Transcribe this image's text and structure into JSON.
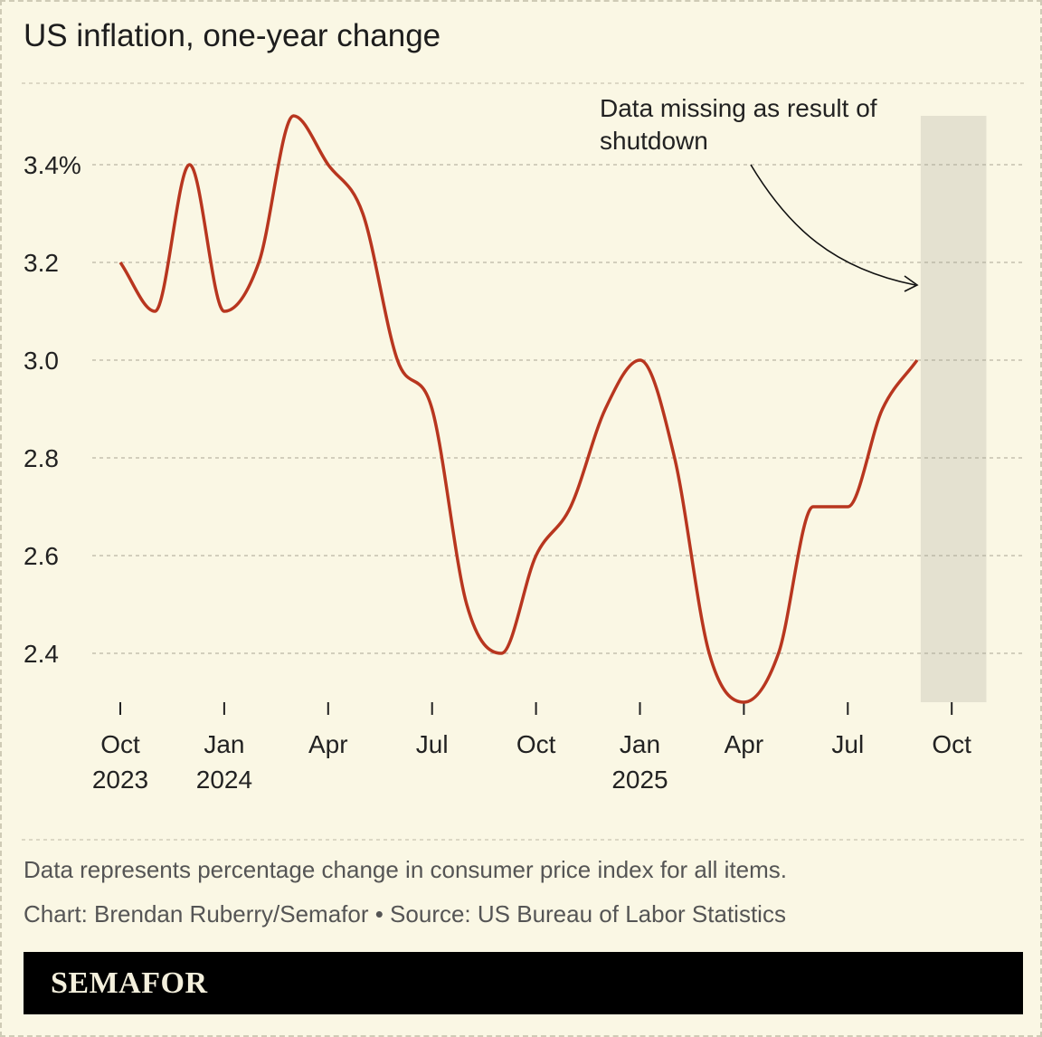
{
  "chart_data": {
    "type": "line",
    "title": "US inflation, one-year change",
    "x": [
      "2023-10",
      "2023-11",
      "2023-12",
      "2024-01",
      "2024-02",
      "2024-03",
      "2024-04",
      "2024-05",
      "2024-06",
      "2024-07",
      "2024-08",
      "2024-09",
      "2024-10",
      "2024-11",
      "2024-12",
      "2025-01",
      "2025-02",
      "2025-03",
      "2025-04",
      "2025-05",
      "2025-06",
      "2025-07",
      "2025-08",
      "2025-09"
    ],
    "values": [
      3.2,
      3.1,
      3.4,
      3.1,
      3.2,
      3.5,
      3.4,
      3.3,
      3.0,
      2.9,
      2.5,
      2.4,
      2.6,
      2.7,
      2.9,
      3.0,
      2.8,
      2.4,
      2.3,
      2.4,
      2.7,
      2.7,
      2.9,
      3.0
    ],
    "ylim": [
      2.3,
      3.5
    ],
    "y_ticks": [
      {
        "value": 3.4,
        "label": "3.4%"
      },
      {
        "value": 3.2,
        "label": "3.2"
      },
      {
        "value": 3.0,
        "label": "3.0"
      },
      {
        "value": 2.8,
        "label": "2.8"
      },
      {
        "value": 2.6,
        "label": "2.6"
      },
      {
        "value": 2.4,
        "label": "2.4"
      }
    ],
    "x_ticks": [
      {
        "month": "2023-10",
        "line1": "Oct",
        "line2": "2023"
      },
      {
        "month": "2024-01",
        "line1": "Jan",
        "line2": "2024"
      },
      {
        "month": "2024-04",
        "line1": "Apr",
        "line2": ""
      },
      {
        "month": "2024-07",
        "line1": "Jul",
        "line2": ""
      },
      {
        "month": "2024-10",
        "line1": "Oct",
        "line2": ""
      },
      {
        "month": "2025-01",
        "line1": "Jan",
        "line2": "2025"
      },
      {
        "month": "2025-04",
        "line1": "Apr",
        "line2": ""
      },
      {
        "month": "2025-07",
        "line1": "Jul",
        "line2": ""
      },
      {
        "month": "2025-10",
        "line1": "Oct",
        "line2": ""
      }
    ],
    "shaded_region": {
      "from": "2025-09",
      "to": "2025-11"
    },
    "annotation": {
      "line1": "Data missing as result of",
      "line2": "shutdown"
    },
    "grid": true,
    "colors": {
      "line": "#b8361f",
      "shade": "#e4e1d0",
      "background": "#faf7e4"
    }
  },
  "footer": {
    "note": "Data represents percentage change in consumer price index for all items.",
    "credit": "Chart: Brendan Ruberry/Semafor • Source: US Bureau of Labor Statistics",
    "brand": "SEMAFOR"
  }
}
